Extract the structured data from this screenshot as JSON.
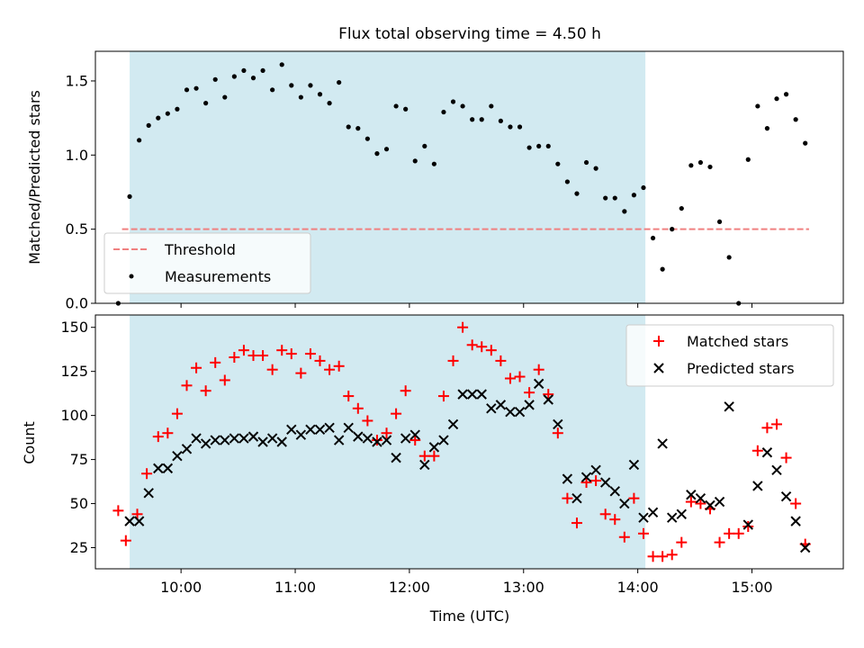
{
  "chart_data": [
    {
      "type": "scatter",
      "title": "Flux total observing time = 4.50 h",
      "xlabel": "",
      "ylabel": "Matched/Predicted stars",
      "xlim": [
        "09:15",
        "15:48"
      ],
      "ylim": [
        0,
        1.7
      ],
      "yticks": [
        "0.0",
        "0.5",
        "1.0",
        "1.5"
      ],
      "shaded_interval": [
        "09:33",
        "14:04"
      ],
      "shade_color": "#add8e6",
      "legend": {
        "position": "bottom-left",
        "entries": [
          "Threshold",
          "Measurements"
        ]
      },
      "threshold": {
        "name": "Threshold",
        "y": 0.5,
        "x_start": "09:29",
        "x_end": "15:30",
        "color": "#f08080",
        "style": "dashed"
      },
      "series": [
        {
          "name": "Measurements",
          "color": "#000000",
          "marker": "dot",
          "points": [
            [
              "09:27",
              0.0
            ],
            [
              "09:33",
              0.72
            ],
            [
              "09:38",
              1.1
            ],
            [
              "09:43",
              1.2
            ],
            [
              "09:48",
              1.25
            ],
            [
              "09:53",
              1.28
            ],
            [
              "09:58",
              1.31
            ],
            [
              "10:03",
              1.44
            ],
            [
              "10:08",
              1.45
            ],
            [
              "10:13",
              1.35
            ],
            [
              "10:18",
              1.51
            ],
            [
              "10:23",
              1.39
            ],
            [
              "10:28",
              1.53
            ],
            [
              "10:33",
              1.57
            ],
            [
              "10:38",
              1.52
            ],
            [
              "10:43",
              1.57
            ],
            [
              "10:48",
              1.44
            ],
            [
              "10:53",
              1.61
            ],
            [
              "10:58",
              1.47
            ],
            [
              "11:03",
              1.39
            ],
            [
              "11:08",
              1.47
            ],
            [
              "11:13",
              1.41
            ],
            [
              "11:18",
              1.35
            ],
            [
              "11:23",
              1.49
            ],
            [
              "11:28",
              1.19
            ],
            [
              "11:33",
              1.18
            ],
            [
              "11:38",
              1.11
            ],
            [
              "11:43",
              1.01
            ],
            [
              "11:48",
              1.04
            ],
            [
              "11:53",
              1.33
            ],
            [
              "11:58",
              1.31
            ],
            [
              "12:03",
              0.96
            ],
            [
              "12:08",
              1.06
            ],
            [
              "12:13",
              0.94
            ],
            [
              "12:18",
              1.29
            ],
            [
              "12:23",
              1.36
            ],
            [
              "12:28",
              1.33
            ],
            [
              "12:33",
              1.24
            ],
            [
              "12:38",
              1.24
            ],
            [
              "12:43",
              1.33
            ],
            [
              "12:48",
              1.23
            ],
            [
              "12:53",
              1.19
            ],
            [
              "12:58",
              1.19
            ],
            [
              "13:03",
              1.05
            ],
            [
              "13:08",
              1.06
            ],
            [
              "13:13",
              1.06
            ],
            [
              "13:18",
              0.94
            ],
            [
              "13:23",
              0.82
            ],
            [
              "13:28",
              0.74
            ],
            [
              "13:33",
              0.95
            ],
            [
              "13:38",
              0.91
            ],
            [
              "13:43",
              0.71
            ],
            [
              "13:48",
              0.71
            ],
            [
              "13:53",
              0.62
            ],
            [
              "13:58",
              0.73
            ],
            [
              "14:03",
              0.78
            ],
            [
              "14:08",
              0.44
            ],
            [
              "14:13",
              0.23
            ],
            [
              "14:18",
              0.5
            ],
            [
              "14:23",
              0.64
            ],
            [
              "14:28",
              0.93
            ],
            [
              "14:33",
              0.95
            ],
            [
              "14:38",
              0.92
            ],
            [
              "14:43",
              0.55
            ],
            [
              "14:48",
              0.31
            ],
            [
              "14:53",
              0.0
            ],
            [
              "14:58",
              0.97
            ],
            [
              "15:03",
              1.33
            ],
            [
              "15:08",
              1.18
            ],
            [
              "15:13",
              1.38
            ],
            [
              "15:18",
              1.41
            ],
            [
              "15:23",
              1.24
            ],
            [
              "15:28",
              1.08
            ]
          ]
        }
      ]
    },
    {
      "type": "scatter",
      "title": "",
      "xlabel": "Time (UTC)",
      "ylabel": "Count",
      "xlim": [
        "09:15",
        "15:48"
      ],
      "ylim": [
        13,
        157
      ],
      "yticks": [
        "25",
        "50",
        "75",
        "100",
        "125",
        "150"
      ],
      "xticks": [
        "10:00",
        "11:00",
        "12:00",
        "13:00",
        "14:00",
        "15:00"
      ],
      "shaded_interval": [
        "09:33",
        "14:04"
      ],
      "shade_color": "#add8e6",
      "legend": {
        "position": "top-right",
        "entries": [
          "Matched stars",
          "Predicted stars"
        ]
      },
      "series": [
        {
          "name": "Matched stars",
          "color": "#ff0000",
          "marker": "plus",
          "points": [
            [
              "09:27",
              46
            ],
            [
              "09:31",
              29
            ],
            [
              "09:37",
              44
            ],
            [
              "09:42",
              67
            ],
            [
              "09:48",
              88
            ],
            [
              "09:53",
              90
            ],
            [
              "09:58",
              101
            ],
            [
              "10:03",
              117
            ],
            [
              "10:08",
              127
            ],
            [
              "10:13",
              114
            ],
            [
              "10:18",
              130
            ],
            [
              "10:23",
              120
            ],
            [
              "10:28",
              133
            ],
            [
              "10:33",
              137
            ],
            [
              "10:38",
              134
            ],
            [
              "10:43",
              134
            ],
            [
              "10:48",
              126
            ],
            [
              "10:53",
              137
            ],
            [
              "10:58",
              135
            ],
            [
              "11:03",
              124
            ],
            [
              "11:08",
              135
            ],
            [
              "11:13",
              131
            ],
            [
              "11:18",
              126
            ],
            [
              "11:23",
              128
            ],
            [
              "11:28",
              111
            ],
            [
              "11:33",
              104
            ],
            [
              "11:38",
              97
            ],
            [
              "11:43",
              86
            ],
            [
              "11:48",
              90
            ],
            [
              "11:53",
              101
            ],
            [
              "11:58",
              114
            ],
            [
              "12:03",
              86
            ],
            [
              "12:08",
              77
            ],
            [
              "12:13",
              77
            ],
            [
              "12:18",
              111
            ],
            [
              "12:23",
              131
            ],
            [
              "12:28",
              150
            ],
            [
              "12:33",
              140
            ],
            [
              "12:38",
              139
            ],
            [
              "12:43",
              137
            ],
            [
              "12:48",
              131
            ],
            [
              "12:53",
              121
            ],
            [
              "12:58",
              122
            ],
            [
              "13:03",
              113
            ],
            [
              "13:08",
              126
            ],
            [
              "13:13",
              112
            ],
            [
              "13:18",
              90
            ],
            [
              "13:23",
              53
            ],
            [
              "13:28",
              39
            ],
            [
              "13:33",
              62
            ],
            [
              "13:38",
              63
            ],
            [
              "13:43",
              44
            ],
            [
              "13:48",
              41
            ],
            [
              "13:53",
              31
            ],
            [
              "13:58",
              53
            ],
            [
              "14:03",
              33
            ],
            [
              "14:08",
              20
            ],
            [
              "14:13",
              20
            ],
            [
              "14:18",
              21
            ],
            [
              "14:23",
              28
            ],
            [
              "14:28",
              51
            ],
            [
              "14:33",
              50
            ],
            [
              "14:38",
              47
            ],
            [
              "14:43",
              28
            ],
            [
              "14:48",
              33
            ],
            [
              "14:53",
              33
            ],
            [
              "14:58",
              37
            ],
            [
              "15:03",
              80
            ],
            [
              "15:08",
              93
            ],
            [
              "15:13",
              95
            ],
            [
              "15:18",
              76
            ],
            [
              "15:23",
              50
            ],
            [
              "15:28",
              27
            ]
          ]
        },
        {
          "name": "Predicted stars",
          "color": "#000000",
          "marker": "cross",
          "points": [
            [
              "09:33",
              40
            ],
            [
              "09:38",
              40
            ],
            [
              "09:43",
              56
            ],
            [
              "09:48",
              70
            ],
            [
              "09:53",
              70
            ],
            [
              "09:58",
              77
            ],
            [
              "10:03",
              81
            ],
            [
              "10:08",
              87
            ],
            [
              "10:13",
              84
            ],
            [
              "10:18",
              86
            ],
            [
              "10:23",
              86
            ],
            [
              "10:28",
              87
            ],
            [
              "10:33",
              87
            ],
            [
              "10:38",
              88
            ],
            [
              "10:43",
              85
            ],
            [
              "10:48",
              87
            ],
            [
              "10:53",
              85
            ],
            [
              "10:58",
              92
            ],
            [
              "11:03",
              89
            ],
            [
              "11:08",
              92
            ],
            [
              "11:13",
              92
            ],
            [
              "11:18",
              93
            ],
            [
              "11:23",
              86
            ],
            [
              "11:28",
              93
            ],
            [
              "11:33",
              88
            ],
            [
              "11:38",
              87
            ],
            [
              "11:43",
              85
            ],
            [
              "11:48",
              86
            ],
            [
              "11:53",
              76
            ],
            [
              "11:58",
              87
            ],
            [
              "12:03",
              89
            ],
            [
              "12:08",
              72
            ],
            [
              "12:13",
              82
            ],
            [
              "12:18",
              86
            ],
            [
              "12:23",
              95
            ],
            [
              "12:28",
              112
            ],
            [
              "12:33",
              112
            ],
            [
              "12:38",
              112
            ],
            [
              "12:43",
              104
            ],
            [
              "12:48",
              106
            ],
            [
              "12:53",
              102
            ],
            [
              "12:58",
              102
            ],
            [
              "13:03",
              106
            ],
            [
              "13:08",
              118
            ],
            [
              "13:13",
              109
            ],
            [
              "13:18",
              95
            ],
            [
              "13:23",
              64
            ],
            [
              "13:28",
              53
            ],
            [
              "13:33",
              65
            ],
            [
              "13:38",
              69
            ],
            [
              "13:43",
              62
            ],
            [
              "13:48",
              57
            ],
            [
              "13:53",
              50
            ],
            [
              "13:58",
              72
            ],
            [
              "14:03",
              42
            ],
            [
              "14:08",
              45
            ],
            [
              "14:13",
              84
            ],
            [
              "14:18",
              42
            ],
            [
              "14:23",
              44
            ],
            [
              "14:28",
              55
            ],
            [
              "14:33",
              53
            ],
            [
              "14:38",
              49
            ],
            [
              "14:43",
              51
            ],
            [
              "14:48",
              105
            ],
            [
              "14:58",
              38
            ],
            [
              "15:03",
              60
            ],
            [
              "15:08",
              79
            ],
            [
              "15:13",
              69
            ],
            [
              "15:18",
              54
            ],
            [
              "15:23",
              40
            ],
            [
              "15:28",
              25
            ]
          ]
        }
      ]
    }
  ]
}
